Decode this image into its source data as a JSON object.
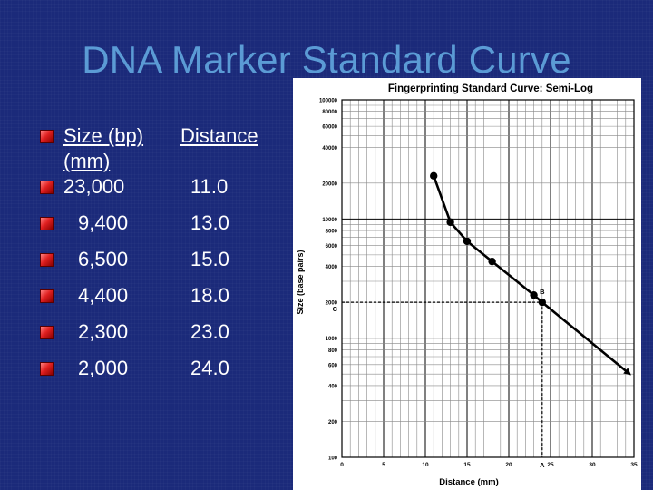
{
  "slide": {
    "title": "DNA Marker Standard Curve"
  },
  "table": {
    "header_size": "Size (bp)",
    "header_distance": "Distance",
    "header_unit": "(mm)",
    "rows": [
      {
        "size": "23,000",
        "distance": "11.0"
      },
      {
        "size": "9,400",
        "distance": "13.0"
      },
      {
        "size": "6,500",
        "distance": "15.0"
      },
      {
        "size": "4,400",
        "distance": "18.0"
      },
      {
        "size": "2,300",
        "distance": "23.0"
      },
      {
        "size": "2,000",
        "distance": "24.0"
      }
    ]
  },
  "colors": {
    "background": "#1b2a7a",
    "title": "#5b9bd5",
    "bullet": "#e02020",
    "chart_bg": "#ffffff",
    "curve": "#000000"
  },
  "chart_data": {
    "type": "line",
    "title": "Fingerprinting Standard Curve: Semi-Log",
    "xlabel": "Distance (mm)",
    "ylabel": "Size (base pairs)",
    "y_scale": "log",
    "xlim": [
      0,
      35
    ],
    "ylim": [
      100,
      100000
    ],
    "grid": true,
    "x_ticks": [
      "0",
      "5",
      "10",
      "15",
      "20",
      "25",
      "30",
      "35"
    ],
    "y_ticks": [
      "100",
      "200",
      "400",
      "600",
      "800",
      "1000",
      "2000",
      "4000",
      "6000",
      "8000",
      "10000",
      "20000",
      "40000",
      "60000",
      "80000",
      "100000"
    ],
    "series": [
      {
        "x": [
          11,
          13,
          15,
          18,
          23,
          24
        ],
        "y": [
          23000,
          9400,
          6500,
          4400,
          2300,
          2000
        ]
      }
    ],
    "extrapolation": {
      "x": [
        24,
        34.5
      ],
      "y": [
        2000,
        500
      ]
    },
    "annotations": [
      {
        "label": "A",
        "x": 24,
        "y": 100
      },
      {
        "label": "B",
        "x": 24,
        "y": 2000
      },
      {
        "label": "C",
        "x": 0,
        "y": 2000
      }
    ]
  }
}
